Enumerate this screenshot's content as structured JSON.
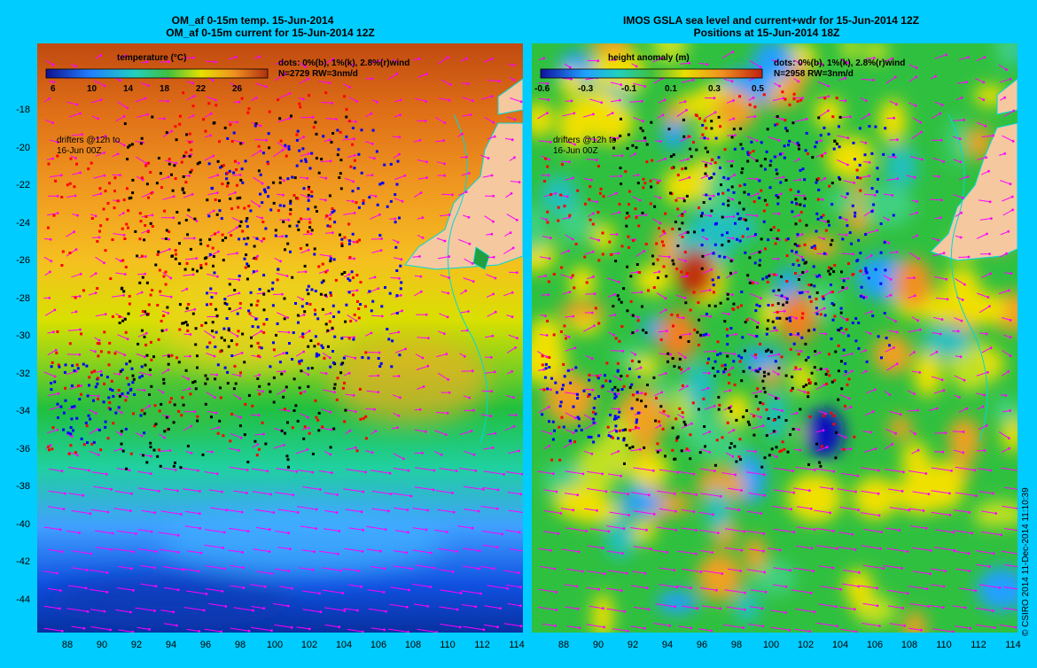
{
  "left_panel": {
    "title_line1": "OM_af 0-15m temp. 15-Jun-2014",
    "title_line2": "OM_af 0-15m current for 15-Jun-2014 12Z",
    "colorbar_title": "temperature (°C)",
    "colorbar_ticks": [
      "6",
      "10",
      "14",
      "18",
      "22",
      "26"
    ],
    "dots_legend": "dots: 0%(b), 1%(k), 2.8%(r)wind",
    "count_line": "N=2729 RW=3nm/d",
    "drifter_note_line1": "drifters @12h to",
    "drifter_note_line2": "16-Jun 00Z"
  },
  "right_panel": {
    "title_line1": "IMOS GSLA sea level and current+wdr for 15-Jun-2014 12Z",
    "title_line2": "Positions at 15-Jun-2014 18Z",
    "colorbar_title": "height anomaly (m)",
    "colorbar_ticks": [
      "-0.6",
      "-0.3",
      "-0.1",
      "0.1",
      "0.3",
      "0.5"
    ],
    "dots_legend": "dots: 0%(b), 1%(k), 2.8%(r)wind",
    "count_line": "N=2958 RW=3nm/d",
    "drifter_note_line1": "drifters @12h to",
    "drifter_note_line2": "16-Jun 00Z"
  },
  "axes": {
    "lat_labels": [
      "-18",
      "-20",
      "-22",
      "-24",
      "-26",
      "-28",
      "-30",
      "-32",
      "-34",
      "-36",
      "-38",
      "-40",
      "-42",
      "-44"
    ],
    "lon_labels": [
      "88",
      "90",
      "92",
      "94",
      "96",
      "98",
      "100",
      "102",
      "104",
      "106",
      "108",
      "110",
      "112",
      "114"
    ]
  },
  "credit": "© CSIRO 2014  11-Dec-2014 11:10:39",
  "colors": {
    "background": "#00ccff",
    "land": "#f5c8a0",
    "coast": "#00d8d8",
    "vector": "#ff00ff",
    "drifter_blue": "#0000ff",
    "drifter_black": "#000000",
    "drifter_red": "#ff0000"
  }
}
